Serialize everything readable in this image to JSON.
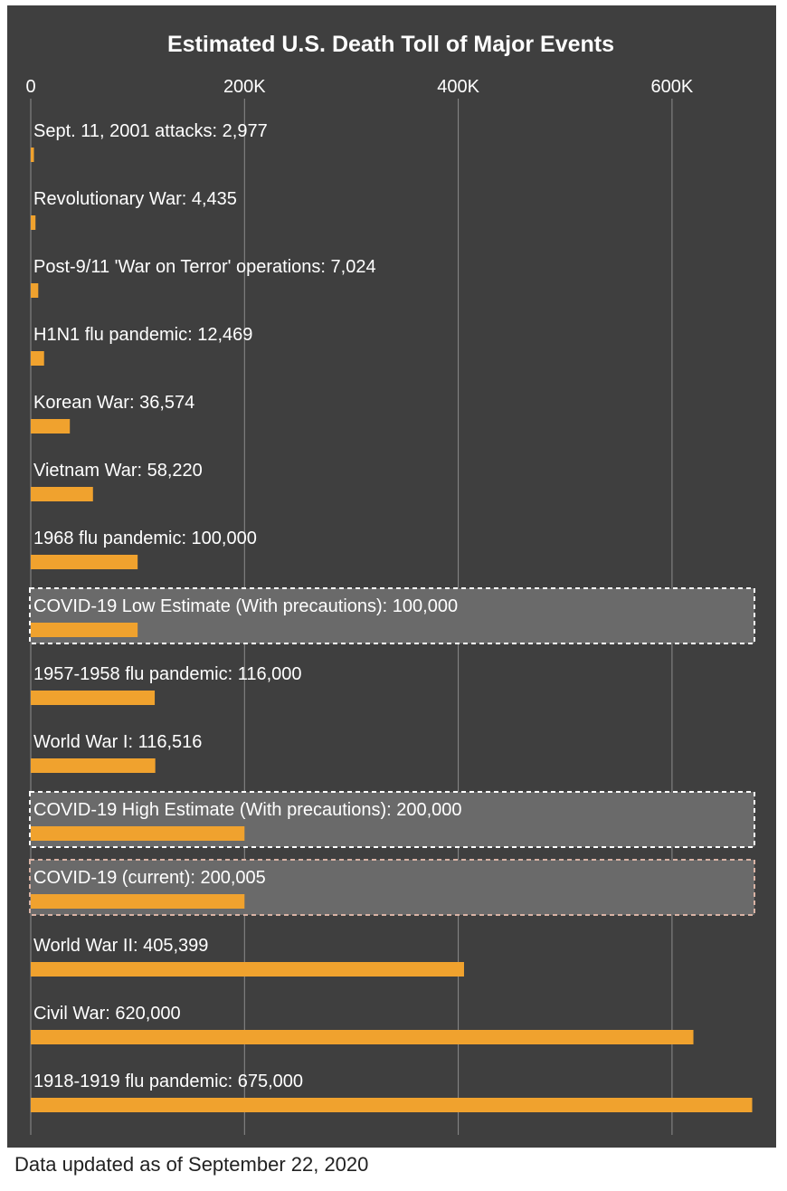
{
  "chart_data": {
    "type": "bar",
    "orientation": "horizontal",
    "title": "Estimated U.S. Death Toll of Major Events",
    "xlabel": "",
    "ylabel": "",
    "xlim": [
      0,
      675000
    ],
    "x_ticks": [
      0,
      200000,
      400000,
      600000
    ],
    "x_tick_labels": [
      "0",
      "200K",
      "400K",
      "600K"
    ],
    "grid": true,
    "bar_color": "#f0a22e",
    "background_color": "#3f3f3f",
    "highlight_fill": "#6a6a6a",
    "highlight_border_color": "#ffffff",
    "current_border_color": "#d9b3a5",
    "categories": [
      "Sept. 11, 2001 attacks: 2,977",
      "Revolutionary War: 4,435",
      "Post-9/11 'War on Terror' operations: 7,024",
      "H1N1 flu pandemic: 12,469",
      "Korean War: 36,574",
      "Vietnam War: 58,220",
      "1968 flu pandemic: 100,000",
      "COVID-19 Low Estimate (With precautions): 100,000",
      "1957-1958 flu pandemic: 116,000",
      "World War I: 116,516",
      "COVID-19 High Estimate (With precautions): 200,000",
      "COVID-19 (current): 200,005",
      "World War II: 405,399",
      "Civil War: 620,000",
      "1918-1919 flu pandemic: 675,000"
    ],
    "values": [
      2977,
      4435,
      7024,
      12469,
      36574,
      58220,
      100000,
      100000,
      116000,
      116516,
      200000,
      200005,
      405399,
      620000,
      675000
    ],
    "highlight": [
      "none",
      "none",
      "none",
      "none",
      "none",
      "none",
      "none",
      "estimate",
      "none",
      "none",
      "estimate",
      "current",
      "none",
      "none",
      "none"
    ]
  },
  "footnote": "Data updated as of September 22, 2020"
}
